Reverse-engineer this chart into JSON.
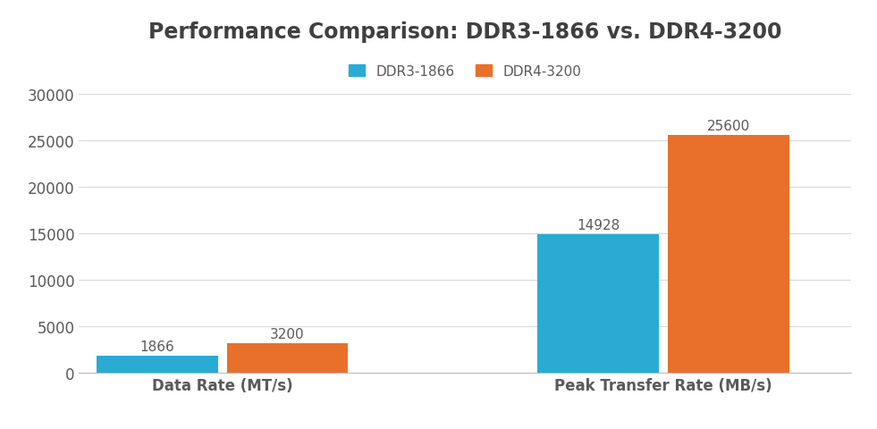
{
  "title": "Performance Comparison: DDR3-1866 vs. DDR4-3200",
  "title_color": "#404040",
  "title_fontsize": 17,
  "categories": [
    "Data Rate (MT/s)",
    "Peak Transfer Rate (MB/s)"
  ],
  "series": [
    {
      "label": "DDR3-1866",
      "values": [
        1866,
        14928
      ],
      "color": "#29ABD4"
    },
    {
      "label": "DDR4-3200",
      "values": [
        3200,
        25600
      ],
      "color": "#E8702A"
    }
  ],
  "ylim": [
    0,
    30000
  ],
  "yticks": [
    0,
    5000,
    10000,
    15000,
    20000,
    25000,
    30000
  ],
  "bar_width": 0.55,
  "background_color": "#ffffff",
  "grid_color": "#d9d9d9",
  "tick_color": "#595959",
  "label_fontsize": 12,
  "annotation_fontsize": 11,
  "legend_fontsize": 11,
  "group_positions": [
    0.55,
    2.55
  ]
}
